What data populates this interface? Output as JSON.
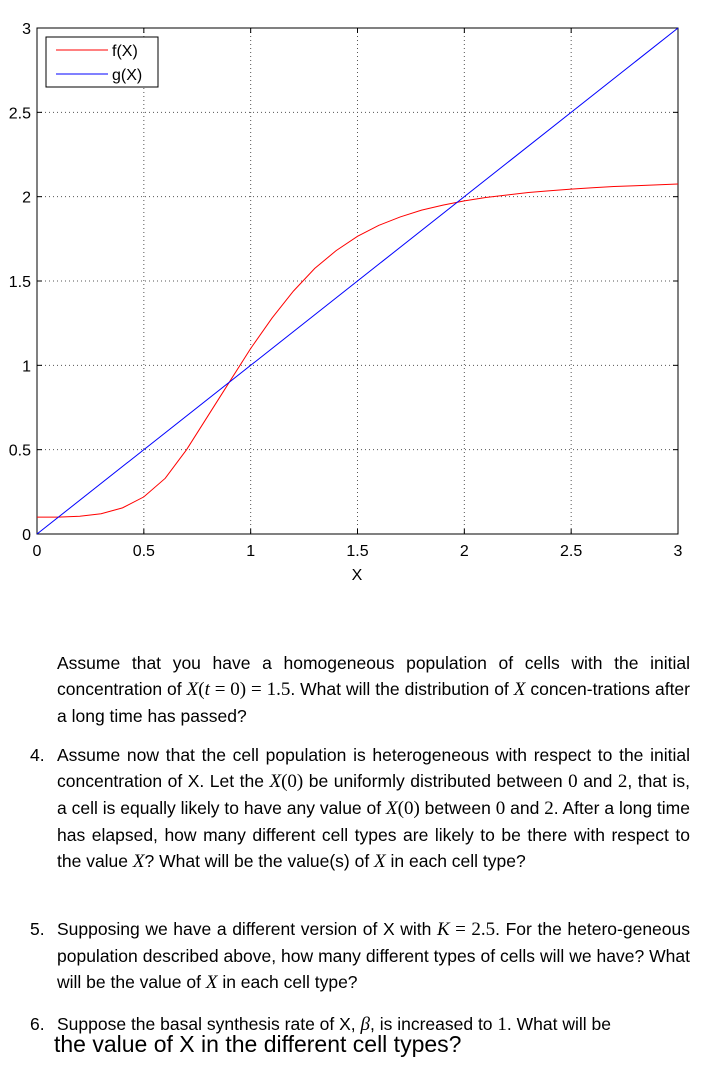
{
  "chart_data": {
    "type": "line",
    "xlabel": "X",
    "ylabel": "",
    "xlim": [
      0,
      3
    ],
    "ylim": [
      0,
      3
    ],
    "grid": true,
    "legend_position": "top-left",
    "xticks": [
      "0",
      "0.5",
      "1",
      "1.5",
      "2",
      "2.5",
      "3"
    ],
    "yticks": [
      "0",
      "0.5",
      "1",
      "1.5",
      "2",
      "2.5",
      "3"
    ],
    "series": [
      {
        "name": "f(X)",
        "color": "#ff0000",
        "x": [
          0,
          0.1,
          0.2,
          0.3,
          0.4,
          0.5,
          0.6,
          0.7,
          0.8,
          0.9,
          1.0,
          1.1,
          1.2,
          1.3,
          1.4,
          1.5,
          1.6,
          1.7,
          1.8,
          1.9,
          2.0,
          2.1,
          2.2,
          2.3,
          2.4,
          2.5,
          2.6,
          2.7,
          2.8,
          2.9,
          3.0
        ],
        "y": [
          0.1,
          0.1,
          0.105,
          0.12,
          0.155,
          0.22,
          0.33,
          0.5,
          0.7,
          0.9,
          1.1,
          1.28,
          1.44,
          1.575,
          1.68,
          1.765,
          1.83,
          1.88,
          1.92,
          1.95,
          1.975,
          1.995,
          2.01,
          2.025,
          2.035,
          2.045,
          2.053,
          2.06,
          2.065,
          2.07,
          2.075
        ]
      },
      {
        "name": "g(X)",
        "color": "#0000ff",
        "x": [
          0,
          3
        ],
        "y": [
          0,
          3
        ]
      }
    ]
  },
  "text": {
    "p1": {
      "a": "Assume that you have a homogeneous population of cells with the initial concentration of ",
      "m1": "X",
      "m2": "(",
      "m3": "t",
      "m4": " = 0) = 1.5",
      "b": ". What will the distribution of ",
      "m5": "X",
      "c": " concen-trations after a long time has passed?"
    },
    "q4": {
      "num": "4.",
      "a": "Assume now that the cell population is heterogeneous with respect to the initial concentration of X. Let the ",
      "m1": "X",
      "m2": "(0)",
      "b": " be uniformly distributed between ",
      "m3": "0",
      "c": " and ",
      "m4": "2",
      "d": ", that is, a cell is equally likely to have any value of ",
      "m5": "X",
      "m6": "(0)",
      "e": " between ",
      "m7": "0",
      "f": " and ",
      "m8": "2",
      "g": ". After a long time has elapsed, how many different cell types are likely to be there with respect to the value ",
      "m9": "X",
      "h": "? What will be the value(s) of ",
      "m10": "X",
      "i": " in each cell type?"
    },
    "q5": {
      "num": "5.",
      "a": "Supposing we have a different version of X with ",
      "m1": "K",
      "m2": " = 2.5",
      "b": ". For the hetero-geneous population described above, how many different types of cells will we have? What will be the value of ",
      "m3": "X",
      "c": " in each cell type?"
    },
    "q6": {
      "num": "6.",
      "a": "Suppose the basal synthesis rate of X, ",
      "m1": "β",
      "b": ", is increased to ",
      "m2": "1",
      "c": ". What will be",
      "d": "the value of X in the different cell types?"
    }
  }
}
